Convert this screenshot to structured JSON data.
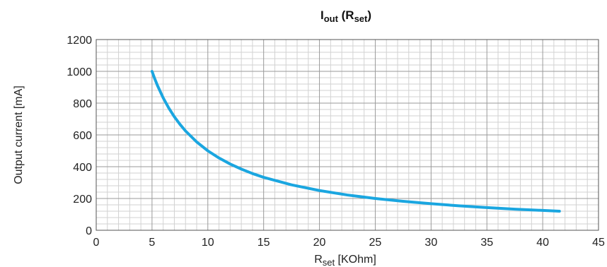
{
  "chart_data": {
    "type": "line",
    "title": {
      "main": "I",
      "sub": "out",
      "paren_open": " (R",
      "paren_sub": "set",
      "paren_close": ")"
    },
    "xlabel": {
      "main": "R",
      "sub": "set",
      "rest": " [KOhm]"
    },
    "ylabel": "Output current [mA]",
    "xlim": [
      0,
      45
    ],
    "ylim": [
      0,
      1200
    ],
    "x_ticks": [
      0,
      5,
      10,
      15,
      20,
      25,
      30,
      35,
      40,
      45
    ],
    "y_ticks": [
      0,
      200,
      400,
      600,
      800,
      1000,
      1200
    ],
    "x_tick_labels": [
      "0",
      "5",
      "10",
      "15",
      "20",
      "25",
      "30",
      "35",
      "40",
      "45"
    ],
    "y_tick_labels": [
      "0",
      "200",
      "400",
      "600",
      "800",
      "1000",
      "1200"
    ],
    "grid": true,
    "series": [
      {
        "color": "#1aa6e0",
        "x": [
          5,
          5.25,
          5.5,
          6,
          6.5,
          7,
          7.5,
          8,
          9,
          10,
          11,
          12,
          13,
          14,
          15,
          17.5,
          20,
          22.5,
          25,
          27.5,
          30,
          32.5,
          35,
          37.5,
          40,
          41.5
        ],
        "y": [
          1000,
          952,
          909,
          833,
          769,
          714,
          667,
          625,
          556,
          500,
          455,
          417,
          385,
          357,
          333,
          286,
          250,
          222,
          200,
          182,
          167,
          154,
          143,
          133,
          125,
          120
        ]
      }
    ]
  }
}
